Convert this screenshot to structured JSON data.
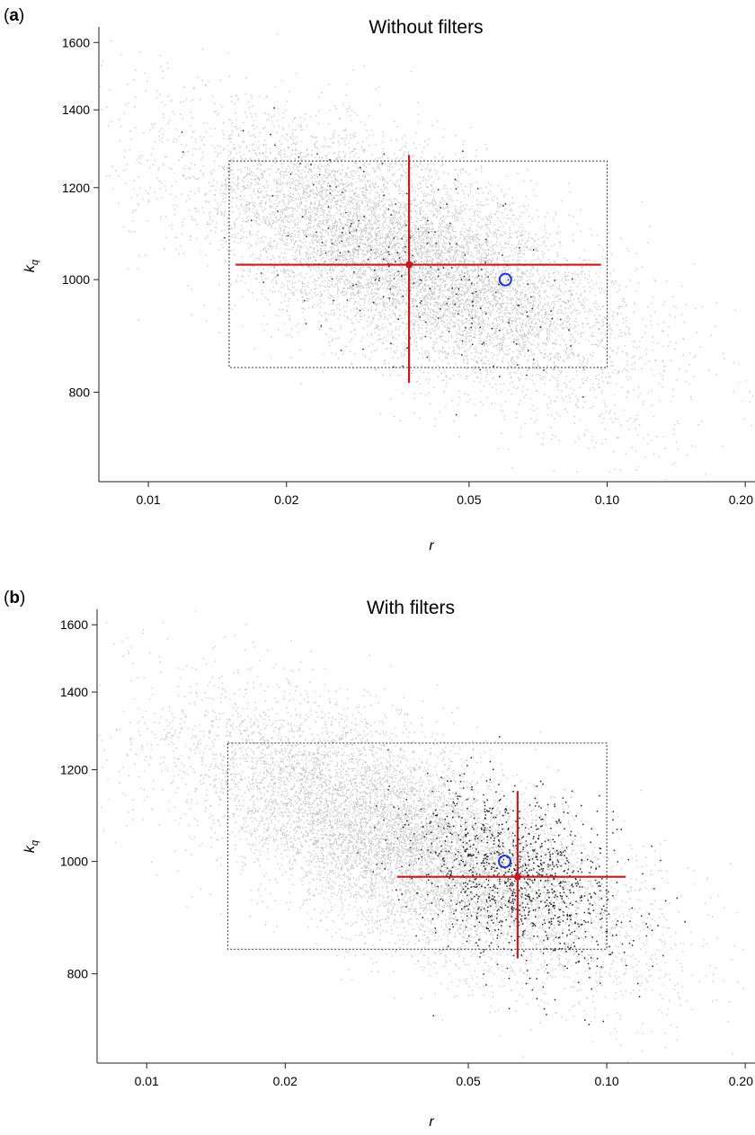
{
  "chart_data": [
    {
      "type": "scatter",
      "panel_label": "a",
      "title": "Without filters",
      "xlabel": "r",
      "ylabel_main": "k",
      "ylabel_sub": "q",
      "x_scale": "log",
      "y_scale": "log",
      "xlim": [
        0.0078,
        0.21
      ],
      "ylim": [
        670,
        1650
      ],
      "x_ticks": [
        {
          "value": 0.01,
          "label": "0.01"
        },
        {
          "value": 0.02,
          "label": "0.02"
        },
        {
          "value": 0.05,
          "label": "0.05"
        },
        {
          "value": 0.1,
          "label": "0.10"
        },
        {
          "value": 0.2,
          "label": "0.20"
        }
      ],
      "y_ticks": [
        {
          "value": 800,
          "label": "800"
        },
        {
          "value": 1000,
          "label": "1000"
        },
        {
          "value": 1200,
          "label": "1200"
        },
        {
          "value": 1400,
          "label": "1400"
        },
        {
          "value": 1600,
          "label": "1600"
        }
      ],
      "prior_box": {
        "r": [
          0.015,
          0.1
        ],
        "k": [
          840,
          1265
        ]
      },
      "estimate": {
        "r": 0.037,
        "k": 1030,
        "r_ci": [
          0.0155,
          0.097
        ],
        "k_ci": [
          815,
          1280
        ]
      },
      "true_value": {
        "r": 0.06,
        "k": 1000
      },
      "cloud": {
        "center_r": 0.037,
        "center_k": 1040,
        "trend": -0.16
      },
      "grey_color": "#c4c4c4",
      "dark_color": "#222222",
      "estimate_color": "#c8191e",
      "true_color": "#1f2ee8"
    },
    {
      "type": "scatter",
      "panel_label": "b",
      "title": "With filters",
      "xlabel": "r",
      "ylabel_main": "k",
      "ylabel_sub": "q",
      "x_scale": "log",
      "y_scale": "log",
      "xlim": [
        0.0078,
        0.21
      ],
      "ylim": [
        670,
        1650
      ],
      "x_ticks": [
        {
          "value": 0.01,
          "label": "0.01"
        },
        {
          "value": 0.02,
          "label": "0.02"
        },
        {
          "value": 0.05,
          "label": "0.05"
        },
        {
          "value": 0.1,
          "label": "0.10"
        },
        {
          "value": 0.2,
          "label": "0.20"
        }
      ],
      "y_ticks": [
        {
          "value": 800,
          "label": "800"
        },
        {
          "value": 1000,
          "label": "1000"
        },
        {
          "value": 1200,
          "label": "1200"
        },
        {
          "value": 1400,
          "label": "1400"
        },
        {
          "value": 1600,
          "label": "1600"
        }
      ],
      "prior_box": {
        "r": [
          0.015,
          0.1
        ],
        "k": [
          840,
          1265
        ]
      },
      "estimate": {
        "r": 0.064,
        "k": 970,
        "r_ci": [
          0.035,
          0.11
        ],
        "k_ci": [
          825,
          1150
        ]
      },
      "true_value": {
        "r": 0.06,
        "k": 1000
      },
      "cloud": {
        "center_r": 0.037,
        "center_k": 1040,
        "trend": -0.16
      },
      "grey_color": "#c4c4c4",
      "dark_color": "#222222",
      "estimate_color": "#c8191e",
      "true_color": "#1f2ee8"
    }
  ]
}
